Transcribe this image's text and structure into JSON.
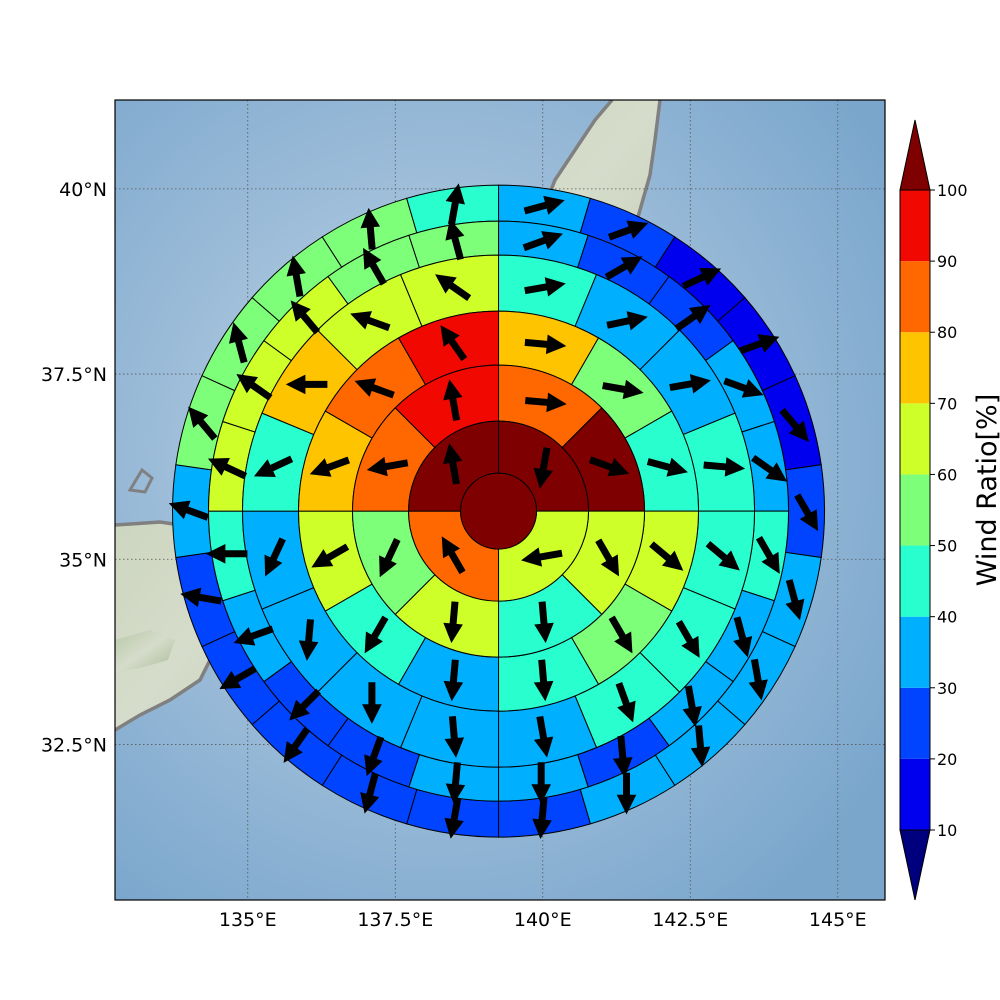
{
  "chart_data": {
    "type": "heatmap",
    "subtype": "polar-sector-map-with-vectors",
    "map": {
      "lon_range": [
        132.75,
        145.8
      ],
      "lat_range": [
        30.4,
        41.2
      ],
      "lon_ticks": [
        135,
        137.5,
        140,
        142.5,
        145
      ],
      "lon_tick_labels": [
        "135°E",
        "137.5°E",
        "140°E",
        "142.5°E",
        "145°E"
      ],
      "lat_ticks": [
        32.5,
        35,
        37.5,
        40
      ],
      "lat_tick_labels": [
        "32.5°N",
        "35°N",
        "37.5°N",
        "40°N"
      ],
      "grid": "dotted",
      "background": "shaded-relief",
      "coastline_color": "#808080",
      "ocean_color": "#8fb3d4",
      "land_color": "#c8d2bc"
    },
    "center": {
      "lon": 139.25,
      "lat": 35.65,
      "value": 100
    },
    "rings": [
      {
        "ring": 1,
        "values": [
          100,
          60,
          80,
          100
        ],
        "directions": [
          190,
          260,
          330,
          350
        ]
      },
      {
        "ring": 2,
        "values": [
          80,
          100,
          60,
          40,
          60,
          50,
          80,
          90
        ],
        "directions": [
          95,
          110,
          150,
          175,
          185,
          205,
          260,
          350
        ]
      },
      {
        "ring": 3,
        "values": [
          70,
          50,
          40,
          60,
          50,
          40,
          30,
          40,
          60,
          70,
          80,
          90
        ],
        "directions": [
          95,
          100,
          105,
          130,
          150,
          175,
          185,
          210,
          240,
          250,
          290,
          325
        ]
      },
      {
        "ring": 4,
        "values": [
          40,
          30,
          30,
          40,
          40,
          40,
          40,
          30,
          30,
          30,
          30,
          30,
          40,
          70,
          60,
          60
        ],
        "directions": [
          80,
          78,
          80,
          95,
          130,
          150,
          160,
          170,
          175,
          180,
          185,
          205,
          245,
          270,
          290,
          305
        ]
      },
      {
        "ring": 5,
        "values": [
          30,
          20,
          20,
          30,
          30,
          40,
          30,
          30,
          20,
          30,
          30,
          20,
          20,
          30,
          40,
          60,
          60,
          60,
          50,
          50
        ],
        "directions": [
          70,
          60,
          55,
          110,
          125,
          150,
          165,
          170,
          175,
          180,
          185,
          200,
          225,
          250,
          270,
          295,
          305,
          320,
          330,
          345
        ]
      },
      {
        "ring": 6,
        "values": [
          30,
          20,
          10,
          10,
          10,
          20,
          30,
          30,
          30,
          30,
          20,
          20,
          20,
          20,
          20,
          20,
          30,
          50,
          50,
          50,
          50,
          40
        ],
        "directions": [
          75,
          70,
          65,
          70,
          140,
          150,
          165,
          170,
          175,
          180,
          185,
          190,
          195,
          215,
          240,
          280,
          290,
          320,
          345,
          350,
          355,
          10
        ]
      }
    ],
    "colorbar": {
      "label": "Wind Ratio[%]",
      "ticks": [
        10,
        20,
        30,
        40,
        50,
        60,
        70,
        80,
        90,
        100
      ],
      "levels": [
        {
          "min": 0,
          "max": 10,
          "color": "#00007f"
        },
        {
          "min": 10,
          "max": 20,
          "color": "#0000ef"
        },
        {
          "min": 20,
          "max": 30,
          "color": "#0044ff"
        },
        {
          "min": 30,
          "max": 40,
          "color": "#00b0ff"
        },
        {
          "min": 40,
          "max": 50,
          "color": "#29ffce"
        },
        {
          "min": 50,
          "max": 60,
          "color": "#7dff7a"
        },
        {
          "min": 60,
          "max": 70,
          "color": "#ceff29"
        },
        {
          "min": 70,
          "max": 80,
          "color": "#ffc400"
        },
        {
          "min": 80,
          "max": 90,
          "color": "#ff6800"
        },
        {
          "min": 90,
          "max": 100,
          "color": "#f10800"
        },
        {
          "min": 100,
          "max": 110,
          "color": "#7f0000"
        }
      ],
      "extend": "both"
    }
  }
}
